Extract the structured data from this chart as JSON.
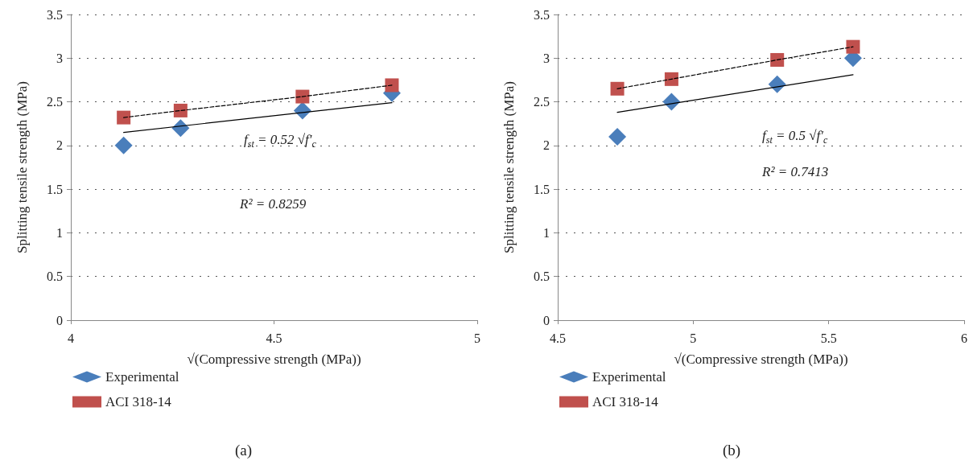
{
  "chart_data": [
    {
      "type": "scatter",
      "xlabel": "√(Compressive strength (MPa))",
      "ylabel": "Splitting tensile strength (MPa)",
      "xlim": [
        4,
        5
      ],
      "xticks": [
        4,
        4.5,
        5
      ],
      "ylim": [
        0,
        3.5
      ],
      "yticks": [
        0,
        0.5,
        1,
        1.5,
        2,
        2.5,
        3,
        3.5
      ],
      "grid": "y",
      "legend": "bottom left",
      "series": [
        {
          "name": "Experimental",
          "type": "scatter",
          "marker": "diamond",
          "color": "#4a7ebb",
          "x": [
            4.13,
            4.27,
            4.57,
            4.79
          ],
          "values": [
            2.0,
            2.2,
            2.4,
            2.6
          ]
        },
        {
          "type": "line",
          "marker": "none",
          "line_style": "dashed",
          "color": "#000000",
          "x": [
            4.13,
            4.27,
            4.57,
            4.79
          ],
          "values": [
            2.32,
            2.4,
            2.56,
            2.69
          ]
        },
        {
          "name": "ACI 318-14",
          "marker": "square",
          "color": "#c0504d",
          "x": [
            4.13,
            4.27,
            4.57,
            4.79
          ],
          "values": [
            2.32,
            2.4,
            2.56,
            2.69
          ]
        },
        {
          "type": "line",
          "marker": "none",
          "line_style": "solid",
          "color": "#000000",
          "x": [
            4.13,
            4.79
          ],
          "values": [
            2.15,
            2.49
          ]
        }
      ],
      "annotations": [
        "f$_{st}$ = 0.52 √f′$_{c}$",
        "R² = 0.8259",
        "(a)"
      ]
    },
    {
      "type": "scatter",
      "xlabel": "√(Compressive strength (MPa))",
      "ylabel": "Splitting tensile strength (MPa)",
      "xlim": [
        4.5,
        6
      ],
      "xticks": [
        4.5,
        5,
        5.5,
        6
      ],
      "ylim": [
        0,
        3.5
      ],
      "yticks": [
        0,
        0.5,
        1,
        1.5,
        2,
        2.5,
        3,
        3.5
      ],
      "grid": "y",
      "legend": "bottom left",
      "series": [
        {
          "name": "Experimental",
          "type": "scatter",
          "marker": "diamond",
          "color": "#4a7ebb",
          "x": [
            4.72,
            4.92,
            5.31,
            5.59
          ],
          "values": [
            2.1,
            2.5,
            2.7,
            3.0
          ]
        },
        {
          "type": "line",
          "marker": "none",
          "line_style": "dashed",
          "color": "#000000",
          "x": [
            4.72,
            4.92,
            5.31,
            5.59
          ],
          "values": [
            2.65,
            2.76,
            2.98,
            3.13
          ]
        },
        {
          "name": "ACI 318-14",
          "marker": "square",
          "color": "#c0504d",
          "x": [
            4.72,
            4.92,
            5.31,
            5.59
          ],
          "values": [
            2.65,
            2.76,
            2.98,
            3.13
          ]
        },
        {
          "type": "line",
          "marker": "none",
          "line_style": "solid",
          "color": "#000000",
          "x": [
            4.72,
            5.59
          ],
          "values": [
            2.38,
            2.81
          ]
        }
      ],
      "annotations": [
        "f$_{st}$ = 0.5 √f′$_{c}$",
        "R² = 0.7413",
        "(b)"
      ]
    }
  ]
}
